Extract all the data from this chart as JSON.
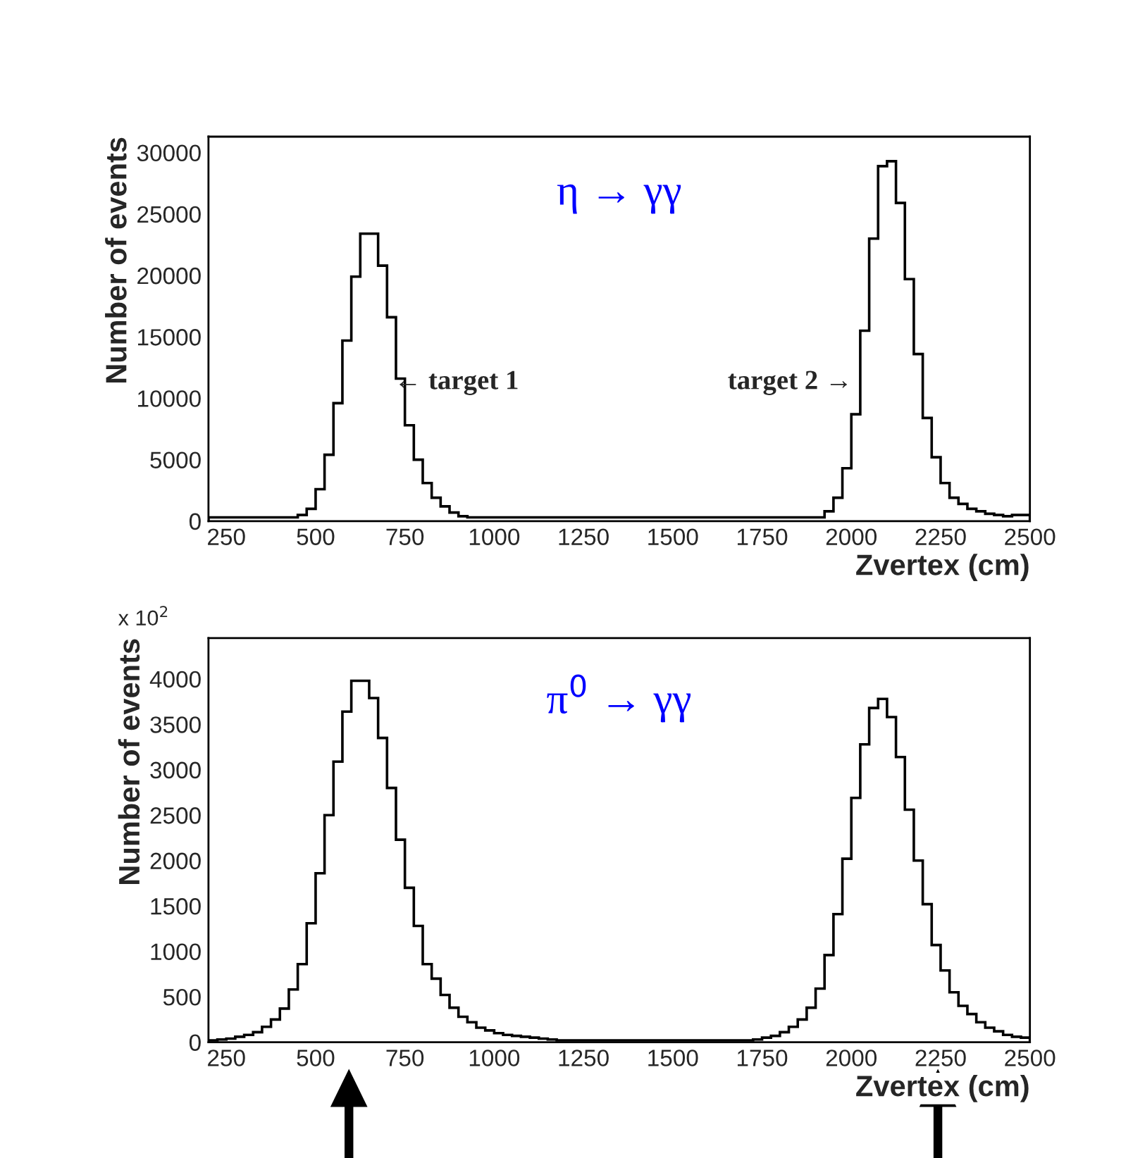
{
  "chart_data": [
    {
      "type": "histogram",
      "xlabel": "Zvertex (cm)",
      "ylabel": "Number of events",
      "color": "#000000",
      "bins": [
        200,
        225,
        250,
        275,
        300,
        325,
        350,
        375,
        400,
        425,
        450,
        475,
        500,
        525,
        550,
        575,
        600,
        625,
        650,
        675,
        700,
        725,
        750,
        775,
        800,
        825,
        850,
        875,
        900,
        925,
        950,
        975,
        1000,
        1025,
        1050,
        1075,
        1100,
        1125,
        1150,
        1175,
        1200,
        1225,
        1250,
        1275,
        1300,
        1325,
        1350,
        1375,
        1400,
        1425,
        1450,
        1475,
        1500,
        1525,
        1550,
        1575,
        1600,
        1625,
        1650,
        1675,
        1700,
        1725,
        1750,
        1775,
        1800,
        1825,
        1850,
        1875,
        1900,
        1925,
        1950,
        1975,
        2000,
        2025,
        2050,
        2075,
        2100,
        2125,
        2150,
        2175,
        2200,
        2225,
        2250,
        2275,
        2300,
        2325,
        2350,
        2375,
        2400,
        2425,
        2450,
        2475,
        2500
      ],
      "values": [
        300,
        300,
        300,
        300,
        300,
        300,
        300,
        300,
        300,
        300,
        500,
        1000,
        2600,
        5400,
        9600,
        14700,
        19900,
        23400,
        23400,
        20800,
        16600,
        11600,
        7800,
        5000,
        3100,
        1900,
        1200,
        700,
        400,
        300,
        300,
        300,
        300,
        300,
        300,
        300,
        300,
        300,
        300,
        300,
        300,
        300,
        300,
        300,
        300,
        300,
        300,
        300,
        300,
        300,
        300,
        300,
        300,
        300,
        300,
        300,
        300,
        300,
        300,
        300,
        300,
        300,
        300,
        300,
        300,
        300,
        300,
        300,
        300,
        800,
        1900,
        4300,
        8700,
        15500,
        23000,
        28900,
        29300,
        25900,
        19700,
        13600,
        8400,
        5200,
        3100,
        1900,
        1400,
        1000,
        800,
        600,
        500,
        400,
        500,
        500
      ],
      "xlim": [
        200,
        2500
      ],
      "ylim": [
        0,
        31300
      ],
      "xticks": [
        250,
        500,
        750,
        1000,
        1250,
        1500,
        1750,
        2000,
        2250,
        2500
      ],
      "yticks": [
        0,
        5000,
        10000,
        15000,
        20000,
        25000,
        30000
      ],
      "annotations": [
        "η → γγ",
        "← target 1",
        "target 2 →"
      ]
    },
    {
      "type": "histogram",
      "xlabel": "Zvertex (cm)",
      "ylabel": "Number of events",
      "color": "#000000",
      "bins": [
        200,
        225,
        250,
        275,
        300,
        325,
        350,
        375,
        400,
        425,
        450,
        475,
        500,
        525,
        550,
        575,
        600,
        625,
        650,
        675,
        700,
        725,
        750,
        775,
        800,
        825,
        850,
        875,
        900,
        925,
        950,
        975,
        1000,
        1025,
        1050,
        1075,
        1100,
        1125,
        1150,
        1175,
        1200,
        1225,
        1250,
        1275,
        1300,
        1325,
        1350,
        1375,
        1400,
        1425,
        1450,
        1475,
        1500,
        1525,
        1550,
        1575,
        1600,
        1625,
        1650,
        1675,
        1700,
        1725,
        1750,
        1775,
        1800,
        1825,
        1850,
        1875,
        1900,
        1925,
        1950,
        1975,
        2000,
        2025,
        2050,
        2075,
        2100,
        2125,
        2150,
        2175,
        2200,
        2225,
        2250,
        2275,
        2300,
        2325,
        2350,
        2375,
        2400,
        2425,
        2450,
        2475,
        2500
      ],
      "values": [
        20,
        30,
        40,
        60,
        80,
        110,
        170,
        250,
        370,
        580,
        860,
        1310,
        1860,
        2500,
        3090,
        3640,
        3980,
        3980,
        3790,
        3350,
        2800,
        2230,
        1700,
        1280,
        860,
        700,
        520,
        380,
        280,
        220,
        160,
        130,
        100,
        80,
        70,
        60,
        50,
        40,
        30,
        20,
        20,
        20,
        20,
        20,
        20,
        20,
        20,
        20,
        20,
        20,
        20,
        20,
        20,
        20,
        20,
        20,
        20,
        20,
        20,
        20,
        20,
        30,
        50,
        70,
        110,
        170,
        250,
        380,
        590,
        960,
        1410,
        2020,
        2690,
        3280,
        3680,
        3780,
        3580,
        3140,
        2560,
        2000,
        1520,
        1070,
        790,
        550,
        400,
        310,
        220,
        160,
        120,
        80,
        60,
        50
      ],
      "xlim": [
        200,
        2500
      ],
      "ylim": [
        0,
        4450
      ],
      "xticks": [
        250,
        500,
        750,
        1000,
        1250,
        1500,
        1750,
        2000,
        2250,
        2500
      ],
      "yticks": [
        0,
        500,
        1000,
        1500,
        2000,
        2500,
        3000,
        3500,
        4000
      ],
      "annotations": [
        "x 10$^{2}$",
        "π$^{0}$ → γγ"
      ]
    }
  ]
}
